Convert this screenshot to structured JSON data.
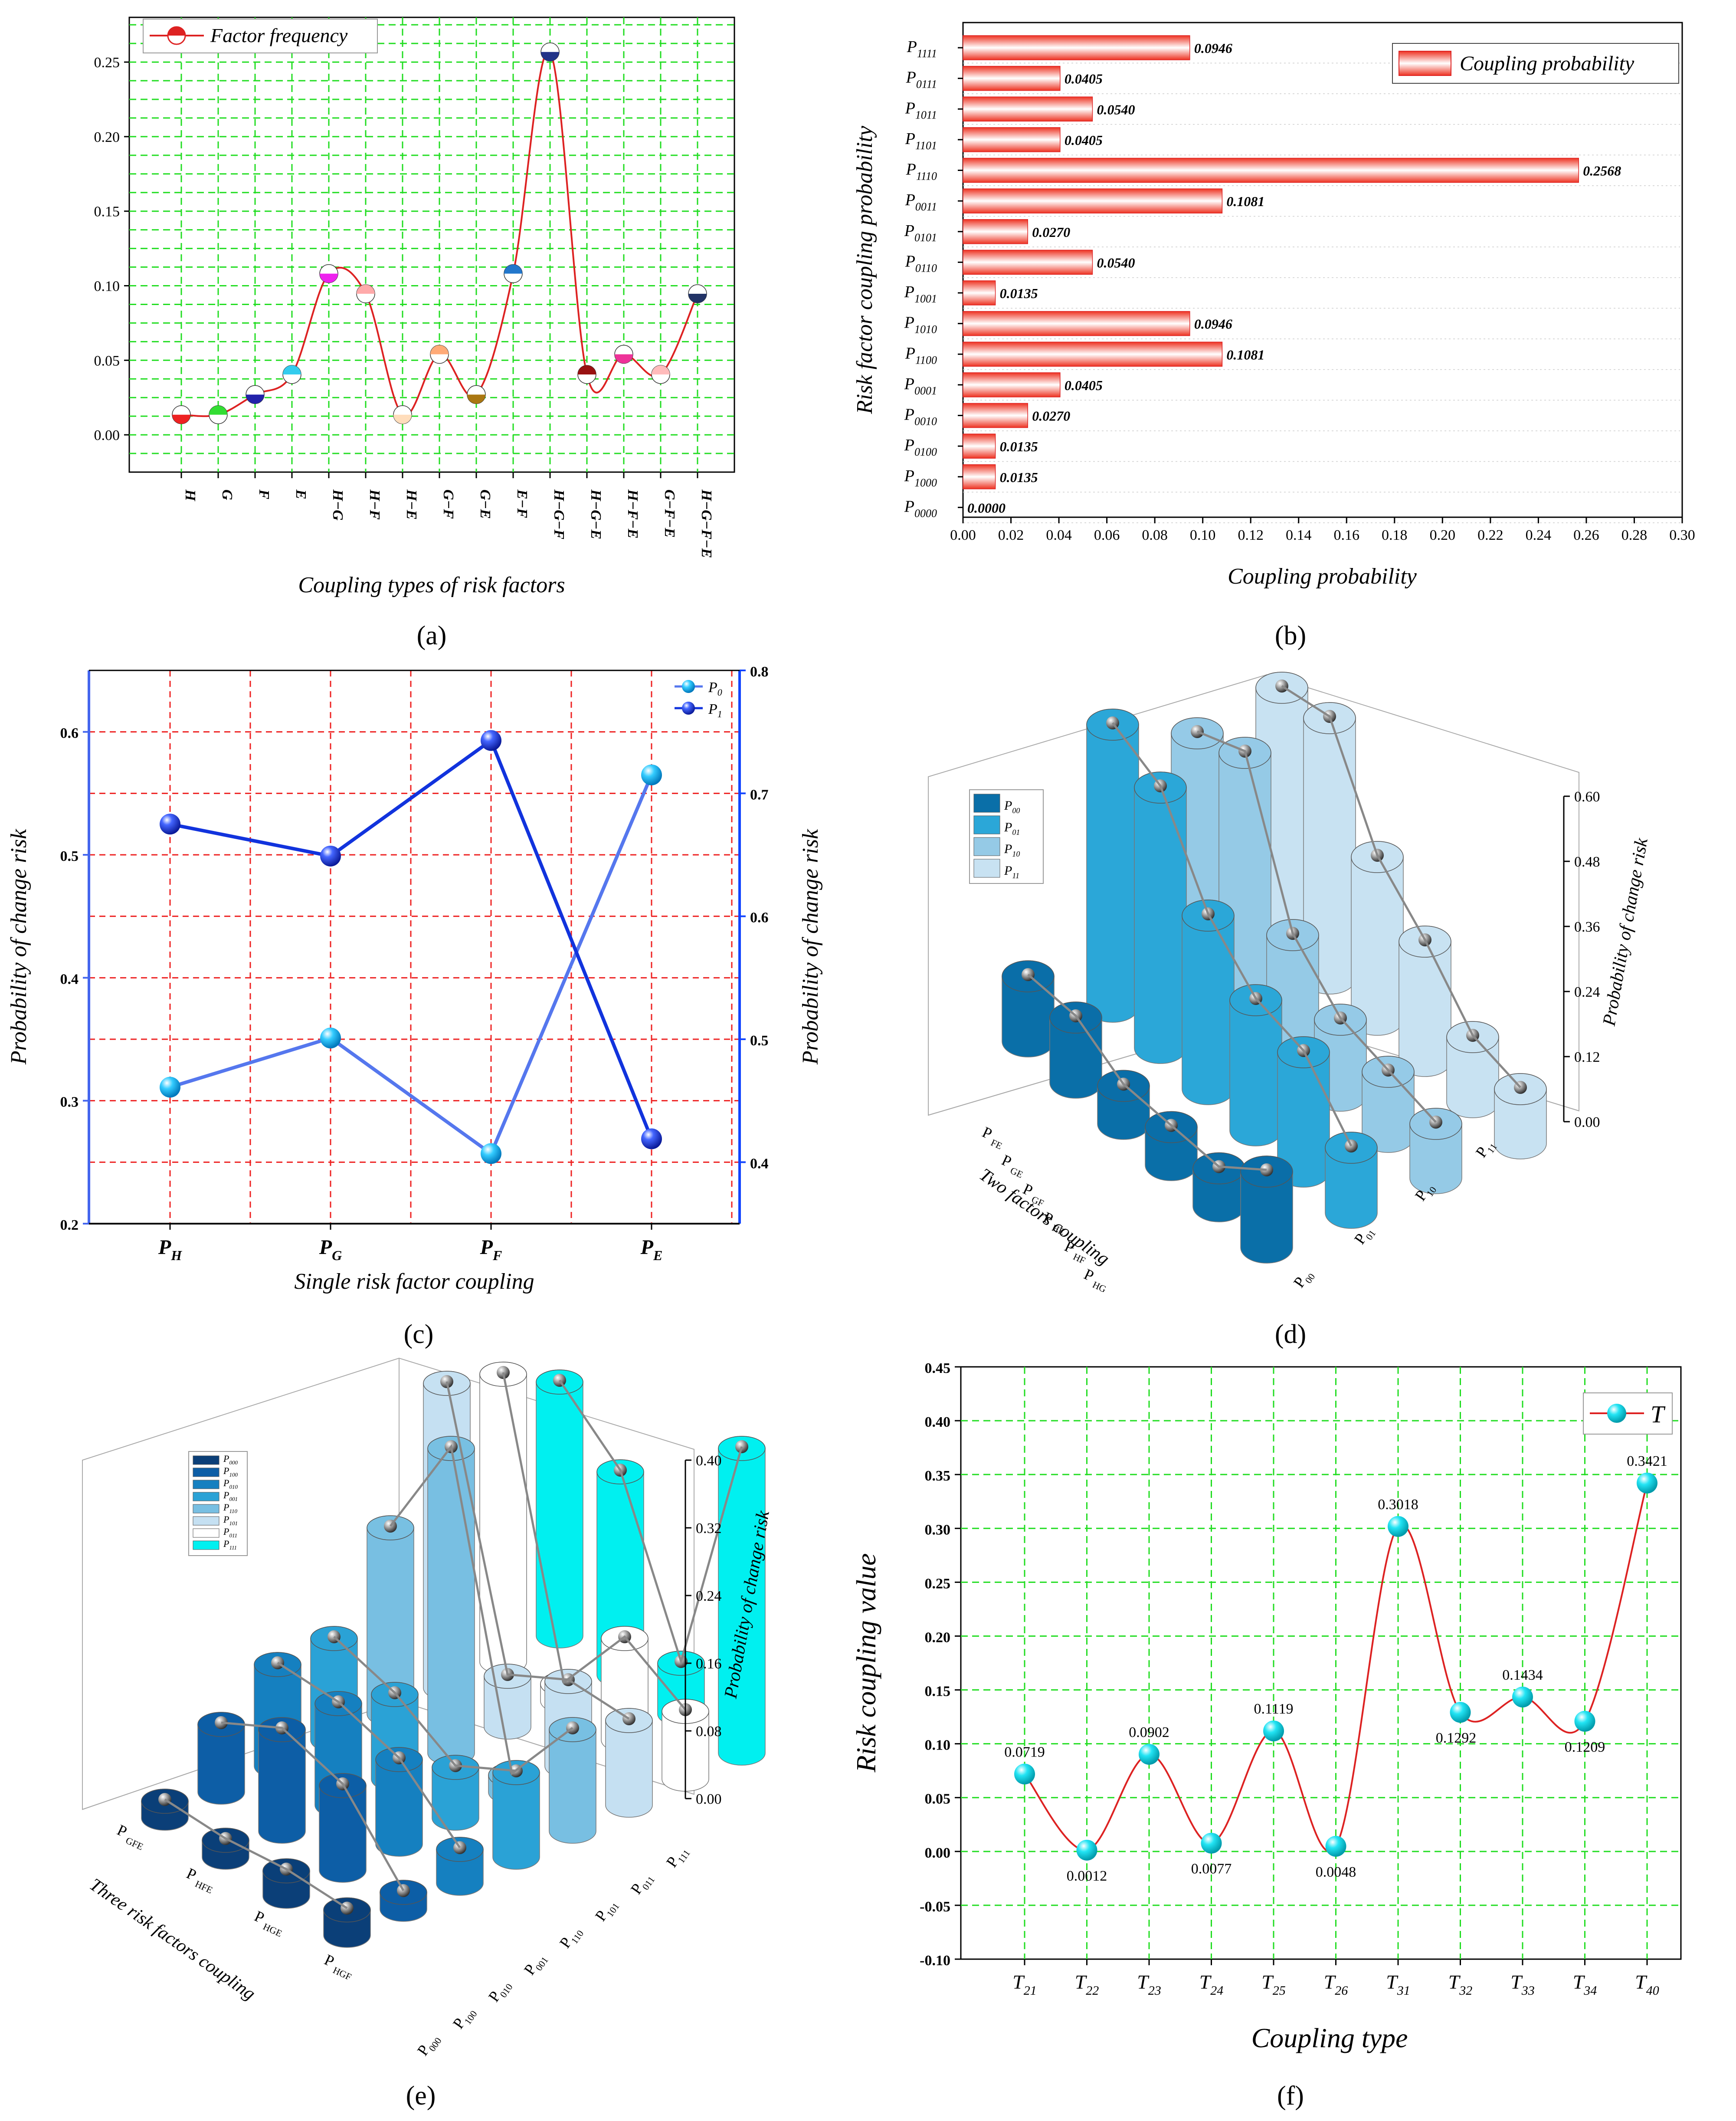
{
  "panels": {
    "a": {
      "caption": "(a)",
      "chart_data": {
        "type": "line",
        "xlabel": "Coupling types of risk factors",
        "ylabel": "",
        "ylim": [
          -0.025,
          0.28
        ],
        "yticks": [
          "0.00",
          "0.05",
          "0.10",
          "0.15",
          "0.20",
          "0.25"
        ],
        "categories": [
          "H",
          "G",
          "F",
          "E",
          "H−G",
          "H−F",
          "H−E",
          "G−F",
          "G−E",
          "E−F",
          "H−G−F",
          "H−G−E",
          "H−F−E",
          "G−F−E",
          "H−G−F−E"
        ],
        "series": [
          {
            "name": "Factor frequency",
            "values": [
              0.0135,
              0.0135,
              0.027,
              0.0405,
              0.1081,
              0.0946,
              0.0135,
              0.054,
              0.027,
              0.1081,
              0.2568,
              0.0405,
              0.054,
              0.0405,
              0.0946
            ]
          }
        ],
        "legend": "top-left",
        "grid": true
      }
    },
    "b": {
      "caption": "(b)",
      "chart_data": {
        "type": "bar",
        "orientation": "horizontal",
        "xlabel": "Coupling probability",
        "ylabel": "Risk factor coupling probability",
        "xlim": [
          0,
          0.3
        ],
        "xticks": [
          "0.00",
          "0.02",
          "0.04",
          "0.06",
          "0.08",
          "0.10",
          "0.12",
          "0.14",
          "0.16",
          "0.18",
          "0.20",
          "0.22",
          "0.24",
          "0.26",
          "0.28",
          "0.30"
        ],
        "categories": [
          {
            "base": "P",
            "sub": "1111"
          },
          {
            "base": "P",
            "sub": "0111"
          },
          {
            "base": "P",
            "sub": "1011"
          },
          {
            "base": "P",
            "sub": "1101"
          },
          {
            "base": "P",
            "sub": "1110"
          },
          {
            "base": "P",
            "sub": "0011"
          },
          {
            "base": "P",
            "sub": "0101"
          },
          {
            "base": "P",
            "sub": "0110"
          },
          {
            "base": "P",
            "sub": "1001"
          },
          {
            "base": "P",
            "sub": "1010"
          },
          {
            "base": "P",
            "sub": "1100"
          },
          {
            "base": "P",
            "sub": "0001"
          },
          {
            "base": "P",
            "sub": "0010"
          },
          {
            "base": "P",
            "sub": "0100"
          },
          {
            "base": "P",
            "sub": "1000"
          },
          {
            "base": "P",
            "sub": "0000"
          }
        ],
        "values": [
          0.0946,
          0.0405,
          0.054,
          0.0405,
          0.2568,
          0.1081,
          0.027,
          0.054,
          0.0135,
          0.0946,
          0.1081,
          0.0405,
          0.027,
          0.0135,
          0.0135,
          0.0
        ],
        "labels": [
          "0.0946",
          "0.0405",
          "0.0540",
          "0.0405",
          "0.2568",
          "0.1081",
          "0.0270",
          "0.0540",
          "0.0135",
          "0.0946",
          "0.1081",
          "0.0405",
          "0.0270",
          "0.0135",
          "0.0135",
          "0.0000"
        ],
        "series_name": "Coupling probability",
        "legend": "top-right"
      }
    },
    "c": {
      "caption": "(c)",
      "chart_data": {
        "type": "line",
        "xlabel": "Single risk factor coupling",
        "ylabel_left": "Probability of change risk",
        "ylabel_right": "Probability of change risk",
        "ylim_left": [
          0.2,
          0.65
        ],
        "ylim_right": [
          0.35,
          0.8
        ],
        "yticks_left": [
          "0.2",
          "0.3",
          "0.4",
          "0.5",
          "0.6"
        ],
        "yticks_right": [
          "0.4",
          "0.5",
          "0.6",
          "0.7",
          "0.8"
        ],
        "categories": [
          {
            "base": "P",
            "sub": "H"
          },
          {
            "base": "P",
            "sub": "G"
          },
          {
            "base": "P",
            "sub": "F"
          },
          {
            "base": "P",
            "sub": "E"
          }
        ],
        "series": [
          {
            "name": "P",
            "sub": "0",
            "axis": "left",
            "values": [
              0.311,
              0.351,
              0.257,
              0.565
            ]
          },
          {
            "name": "P",
            "sub": "1",
            "axis": "right",
            "values": [
              0.675,
              0.649,
              0.743,
              0.419
            ]
          }
        ],
        "legend": "top-right",
        "grid": true
      }
    },
    "d": {
      "caption": "(d)",
      "chart_data": {
        "type": "bar3d",
        "zlabel": "Probability of change risk",
        "xlabel": "Two factors coupling",
        "zlim": [
          0,
          0.6
        ],
        "zticks": [
          "0.00",
          "0.12",
          "0.24",
          "0.36",
          "0.48",
          "0.60"
        ],
        "categories": [
          {
            "base": "P",
            "sub": "FE"
          },
          {
            "base": "P",
            "sub": "GE"
          },
          {
            "base": "P",
            "sub": "GF"
          },
          {
            "base": "P",
            "sub": "HE"
          },
          {
            "base": "P",
            "sub": "HF"
          },
          {
            "base": "P",
            "sub": "HG"
          }
        ],
        "series": [
          {
            "name": "P",
            "sub": "00",
            "color": "#0a6fa8",
            "values": [
              0.12,
              0.12,
              0.07,
              0.07,
              0.07,
              0.14
            ]
          },
          {
            "name": "P",
            "sub": "01",
            "color": "#2ba7d8",
            "values": [
              0.52,
              0.48,
              0.32,
              0.24,
              0.22,
              0.12
            ]
          },
          {
            "name": "P",
            "sub": "10",
            "color": "#95cae6",
            "values": [
              0.44,
              0.48,
              0.22,
              0.14,
              0.12,
              0.1
            ]
          },
          {
            "name": "P",
            "sub": "11",
            "color": "#c8e2f2",
            "values": [
              0.46,
              0.48,
              0.3,
              0.22,
              0.12,
              0.1
            ]
          }
        ],
        "legend": "top-left"
      }
    },
    "e": {
      "caption": "(e)",
      "chart_data": {
        "type": "bar3d",
        "zlabel": "Probability of change risk",
        "xlabel": "Three risk factors coupling",
        "zlim": [
          0,
          0.4
        ],
        "zticks": [
          "0.00",
          "0.08",
          "0.16",
          "0.24",
          "0.32",
          "0.40"
        ],
        "categories": [
          {
            "base": "P",
            "sub": "GFE"
          },
          {
            "base": "P",
            "sub": "HFE"
          },
          {
            "base": "P",
            "sub": "HGE"
          },
          {
            "base": "P",
            "sub": "HGF"
          }
        ],
        "series": [
          {
            "name": "P",
            "sub": "000",
            "color": "#0b3f78",
            "values": [
              0.02,
              0.02,
              0.03,
              0.03
            ]
          },
          {
            "name": "P",
            "sub": "100",
            "color": "#0d5ea6",
            "values": [
              0.08,
              0.12,
              0.1,
              0.02
            ]
          },
          {
            "name": "P",
            "sub": "010",
            "color": "#1580c0",
            "values": [
              0.12,
              0.12,
              0.1,
              0.04
            ]
          },
          {
            "name": "P",
            "sub": "001",
            "color": "#2aa2d6",
            "values": [
              0.12,
              0.1,
              0.06,
              0.1
            ]
          },
          {
            "name": "P",
            "sub": "110",
            "color": "#78bfe2",
            "values": [
              0.22,
              0.36,
              0.02,
              0.12
            ]
          },
          {
            "name": "P",
            "sub": "101",
            "color": "#c5e0f2",
            "values": [
              0.36,
              0.06,
              0.1,
              0.1
            ]
          },
          {
            "name": "P",
            "sub": "011",
            "color": "#ffffff",
            "values": [
              0.34,
              0.02,
              0.12,
              0.08
            ]
          },
          {
            "name": "P",
            "sub": "111",
            "color": "#00f0f0",
            "values": [
              0.3,
              0.24,
              0.06,
              0.36
            ]
          }
        ],
        "legend": "top-left"
      }
    },
    "f": {
      "caption": "(f)",
      "chart_data": {
        "type": "line",
        "xlabel": "Coupling type",
        "ylabel": "Risk coupling value",
        "ylim": [
          -0.1,
          0.45
        ],
        "yticks": [
          "-0.10",
          "-0.05",
          "0.00",
          "0.05",
          "0.10",
          "0.15",
          "0.20",
          "0.25",
          "0.30",
          "0.35",
          "0.40",
          "0.45"
        ],
        "categories": [
          {
            "base": "T",
            "sub": "21"
          },
          {
            "base": "T",
            "sub": "22"
          },
          {
            "base": "T",
            "sub": "23"
          },
          {
            "base": "T",
            "sub": "24"
          },
          {
            "base": "T",
            "sub": "25"
          },
          {
            "base": "T",
            "sub": "26"
          },
          {
            "base": "T",
            "sub": "31"
          },
          {
            "base": "T",
            "sub": "32"
          },
          {
            "base": "T",
            "sub": "33"
          },
          {
            "base": "T",
            "sub": "34"
          },
          {
            "base": "T",
            "sub": "40"
          }
        ],
        "series": [
          {
            "name": "T",
            "values": [
              0.0719,
              0.0012,
              0.0902,
              0.0077,
              0.1119,
              0.0048,
              0.3018,
              0.1292,
              0.1434,
              0.1209,
              0.3421
            ]
          }
        ],
        "labels": [
          "0.0719",
          "0.0012",
          "0.0902",
          "0.0077",
          "0.1119",
          "0.0048",
          "0.3018",
          "0.1292",
          "0.1434",
          "0.1209",
          "0.3421"
        ],
        "legend": "top-right",
        "grid": true
      }
    }
  },
  "colors": {
    "line_red": "#dd2222",
    "grid_green": "#22dd22",
    "grid_red": "#ee2222",
    "p0_blue": "#5577ee",
    "p1_blue": "#1133dd",
    "axis_blue": "#1144ff",
    "cyan": "#22e4f4"
  }
}
